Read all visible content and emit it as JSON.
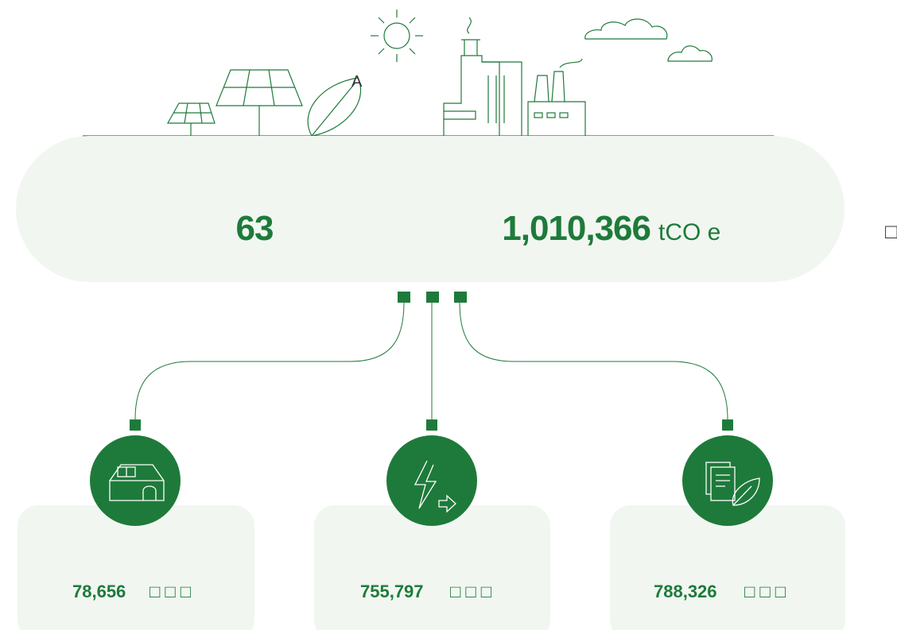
{
  "illustration_label": "A",
  "summary": {
    "count": "63",
    "emissions": "1,010,366",
    "unit": "tCO e",
    "side_label": "□"
  },
  "cards": [
    {
      "value": "78,656",
      "label": "□ □ □"
    },
    {
      "value": "755,797",
      "label": "□ □ □"
    },
    {
      "value": "788,326",
      "label": "□ □ □"
    }
  ]
}
